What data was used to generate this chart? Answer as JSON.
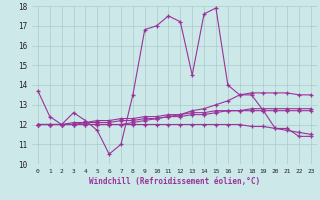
{
  "title": "",
  "xlabel": "Windchill (Refroidissement éolien,°C)",
  "ylabel": "",
  "xlim": [
    -0.5,
    23.5
  ],
  "ylim": [
    10,
    18
  ],
  "yticks": [
    10,
    11,
    12,
    13,
    14,
    15,
    16,
    17,
    18
  ],
  "xticks": [
    0,
    1,
    2,
    3,
    4,
    5,
    6,
    7,
    8,
    9,
    10,
    11,
    12,
    13,
    14,
    15,
    16,
    17,
    18,
    19,
    20,
    21,
    22,
    23
  ],
  "background_color": "#cce8e8",
  "grid_color": "#aacccc",
  "line_color": "#993399",
  "lines": [
    [
      13.7,
      12.4,
      12.0,
      12.6,
      12.2,
      11.7,
      10.5,
      11.0,
      13.5,
      16.8,
      17.0,
      17.5,
      17.2,
      14.5,
      17.6,
      17.9,
      14.0,
      13.5,
      13.5,
      12.7,
      11.8,
      11.8,
      11.4,
      11.4
    ],
    [
      12.0,
      12.0,
      12.0,
      12.1,
      12.1,
      12.2,
      12.2,
      12.3,
      12.3,
      12.4,
      12.4,
      12.5,
      12.5,
      12.6,
      12.6,
      12.7,
      12.7,
      12.7,
      12.8,
      12.8,
      12.8,
      12.8,
      12.8,
      12.8
    ],
    [
      12.0,
      12.0,
      12.0,
      12.0,
      12.1,
      12.1,
      12.1,
      12.2,
      12.2,
      12.3,
      12.3,
      12.4,
      12.4,
      12.5,
      12.5,
      12.6,
      12.7,
      12.7,
      12.7,
      12.7,
      12.7,
      12.7,
      12.7,
      12.7
    ],
    [
      12.0,
      12.0,
      12.0,
      12.0,
      12.0,
      12.0,
      12.0,
      12.0,
      12.0,
      12.0,
      12.0,
      12.0,
      12.0,
      12.0,
      12.0,
      12.0,
      12.0,
      12.0,
      11.9,
      11.9,
      11.8,
      11.7,
      11.6,
      11.5
    ],
    [
      12.0,
      12.0,
      12.0,
      12.0,
      12.0,
      12.0,
      12.0,
      12.0,
      12.1,
      12.2,
      12.3,
      12.4,
      12.5,
      12.7,
      12.8,
      13.0,
      13.2,
      13.5,
      13.6,
      13.6,
      13.6,
      13.6,
      13.5,
      13.5
    ]
  ]
}
